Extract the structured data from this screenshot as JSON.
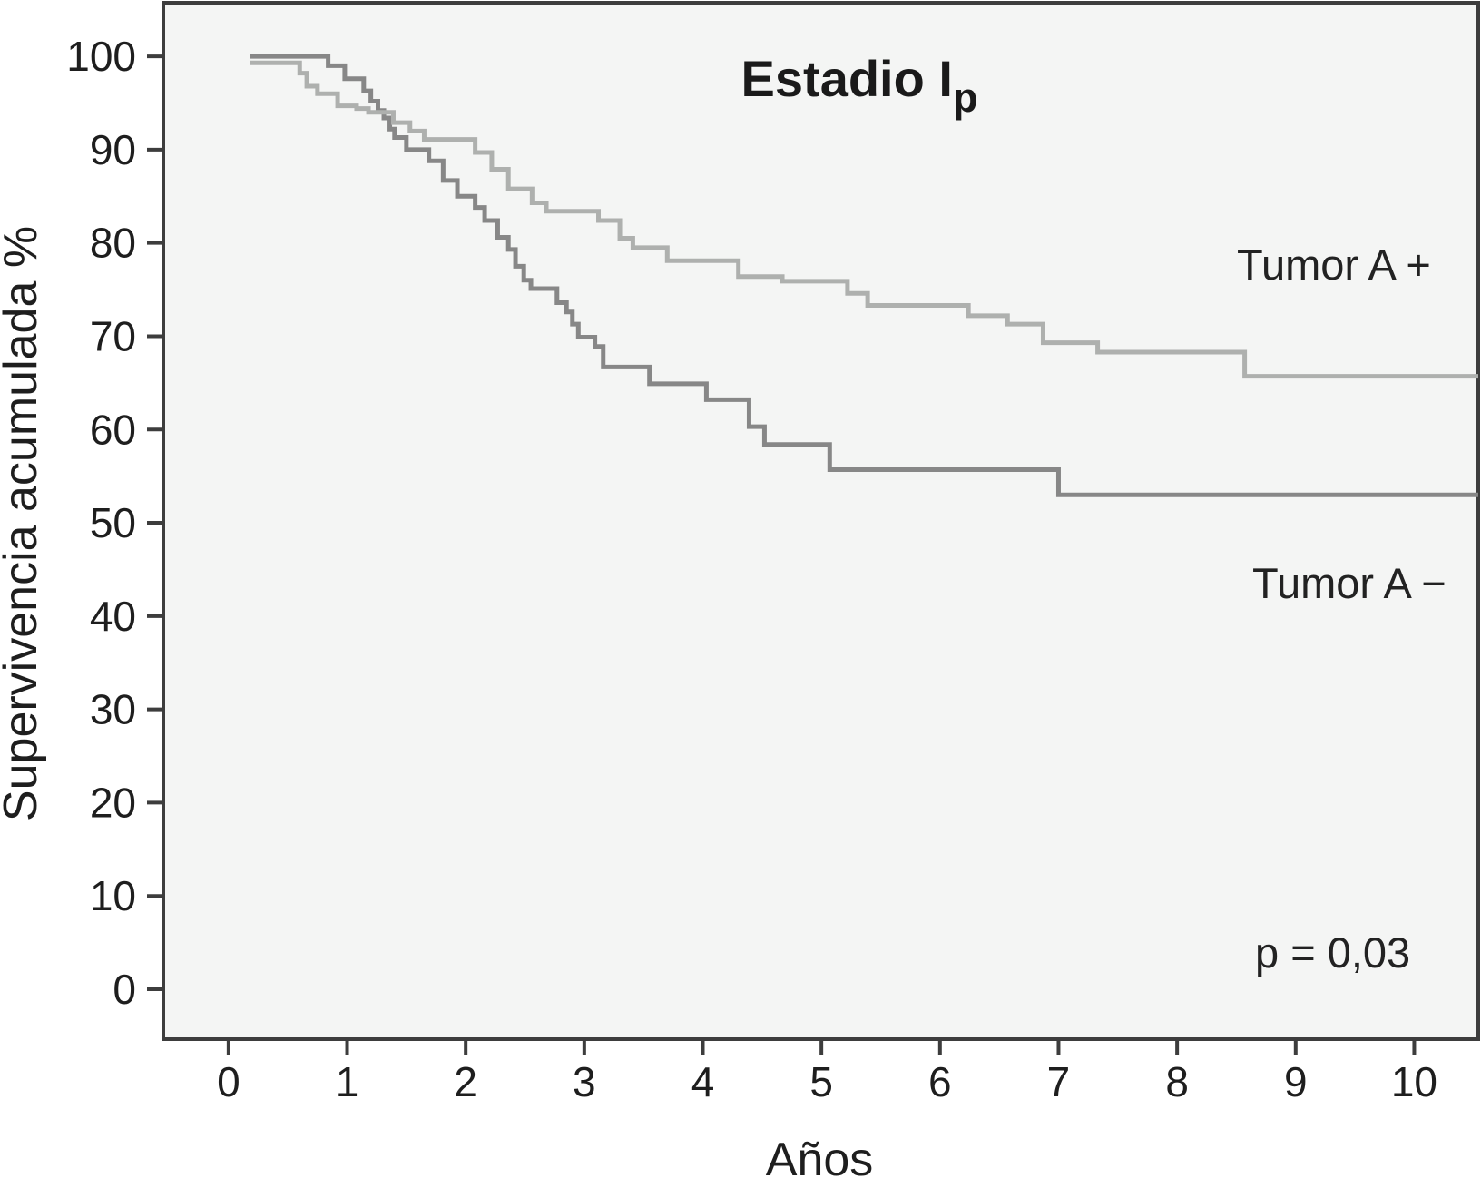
{
  "figure": {
    "background": "#ffffff",
    "plot_background": "#f4f5f4",
    "frame_color": "#3d3d3d",
    "text_color": "#1e1e1e"
  },
  "chart_data": {
    "type": "line",
    "subtype": "kaplan-meier-step",
    "title": "Estadio I",
    "title_subscript": "p",
    "xlabel": "Años",
    "ylabel": "Supervivencia acumulada %",
    "x_ticks": [
      "0",
      "1",
      "2",
      "3",
      "4",
      "5",
      "6",
      "7",
      "8",
      "9",
      "10"
    ],
    "x_tick_values": [
      0,
      1,
      2,
      3,
      4,
      5,
      6,
      7,
      8,
      9,
      10
    ],
    "y_ticks": [
      "0",
      "10",
      "20",
      "30",
      "40",
      "50",
      "60",
      "70",
      "80",
      "90",
      "100"
    ],
    "y_tick_values": [
      0,
      10,
      20,
      30,
      40,
      50,
      60,
      70,
      80,
      90,
      100
    ],
    "xlim": [
      -0.55,
      10.54
    ],
    "ylim": [
      -5.35,
      105.75
    ],
    "grid": false,
    "legend_position": "labels-at-curve-right",
    "annotations": [
      {
        "label": "p = 0,03"
      }
    ],
    "series": [
      {
        "name": "Tumor A +",
        "color": "#aeb0ae",
        "points": [
          [
            0.18,
            99.3
          ],
          [
            0.6,
            98.2
          ],
          [
            0.66,
            96.8
          ],
          [
            0.75,
            96.0
          ],
          [
            0.92,
            94.7
          ],
          [
            1.08,
            94.4
          ],
          [
            1.18,
            94.0
          ],
          [
            1.39,
            92.9
          ],
          [
            1.53,
            92.0
          ],
          [
            1.65,
            91.1
          ],
          [
            2.08,
            89.7
          ],
          [
            2.22,
            87.9
          ],
          [
            2.36,
            85.8
          ],
          [
            2.56,
            84.3
          ],
          [
            2.68,
            83.4
          ],
          [
            3.12,
            82.4
          ],
          [
            3.3,
            80.5
          ],
          [
            3.41,
            79.5
          ],
          [
            3.7,
            78.1
          ],
          [
            4.3,
            76.4
          ],
          [
            4.67,
            75.9
          ],
          [
            5.22,
            74.6
          ],
          [
            5.39,
            73.3
          ],
          [
            6.24,
            72.2
          ],
          [
            6.57,
            71.3
          ],
          [
            6.87,
            69.3
          ],
          [
            7.33,
            68.3
          ],
          [
            8.57,
            65.7
          ]
        ]
      },
      {
        "name": "Tumor A −",
        "color": "#878787",
        "points": [
          [
            0.18,
            100
          ],
          [
            0.84,
            99.0
          ],
          [
            0.98,
            97.6
          ],
          [
            1.14,
            96.3
          ],
          [
            1.2,
            95.2
          ],
          [
            1.26,
            94.2
          ],
          [
            1.31,
            93.4
          ],
          [
            1.36,
            92.2
          ],
          [
            1.4,
            91.3
          ],
          [
            1.5,
            90.0
          ],
          [
            1.69,
            88.8
          ],
          [
            1.81,
            86.7
          ],
          [
            1.93,
            85.0
          ],
          [
            2.08,
            83.8
          ],
          [
            2.16,
            82.4
          ],
          [
            2.27,
            80.6
          ],
          [
            2.36,
            79.3
          ],
          [
            2.42,
            77.5
          ],
          [
            2.49,
            76.0
          ],
          [
            2.55,
            75.1
          ],
          [
            2.77,
            73.6
          ],
          [
            2.85,
            72.6
          ],
          [
            2.9,
            71.3
          ],
          [
            2.95,
            69.9
          ],
          [
            3.09,
            68.9
          ],
          [
            3.16,
            66.7
          ],
          [
            3.55,
            64.9
          ],
          [
            4.03,
            63.2
          ],
          [
            4.39,
            60.3
          ],
          [
            4.52,
            58.4
          ],
          [
            5.07,
            55.7
          ],
          [
            7.0,
            53.0
          ]
        ]
      }
    ]
  }
}
